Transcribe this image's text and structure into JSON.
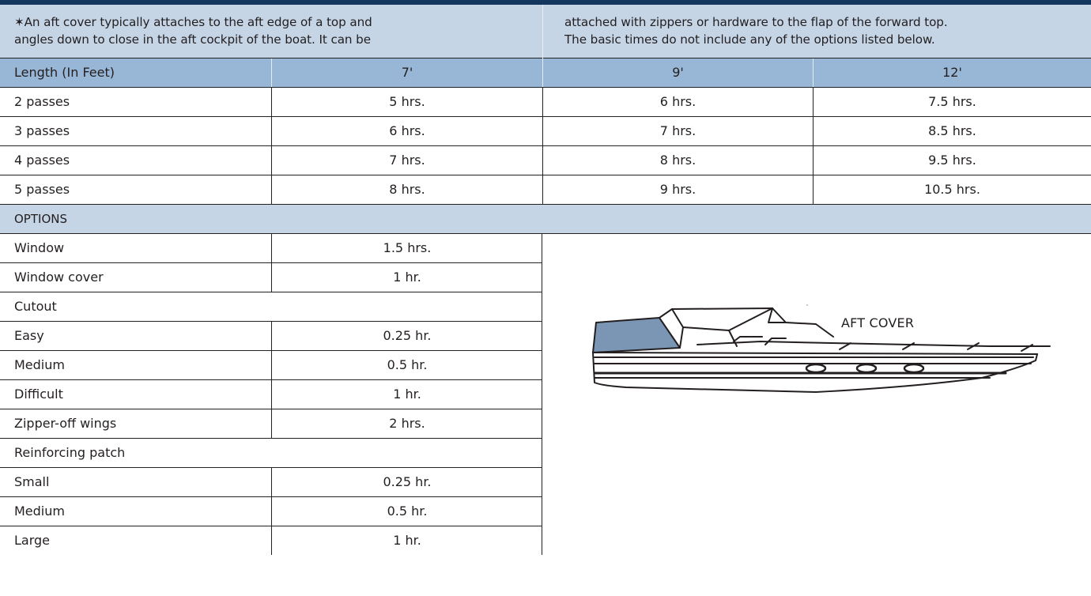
{
  "intro": {
    "left": [
      "✶An aft cover typically attaches to the aft edge of a top and",
      "angles down to close in the aft cockpit of the boat. It can be"
    ],
    "right": [
      "attached with zippers or hardware to the flap of the forward top.",
      "The basic times do not include any of the options listed below."
    ]
  },
  "table": {
    "header": [
      "Length (In Feet)",
      "7'",
      "9'",
      "12'"
    ],
    "rows": [
      [
        "2 passes",
        "5 hrs.",
        "6 hrs.",
        "7.5 hrs."
      ],
      [
        "3 passes",
        "6 hrs.",
        "7 hrs.",
        "8.5 hrs."
      ],
      [
        "4 passes",
        "7 hrs.",
        "8 hrs.",
        "9.5 hrs."
      ],
      [
        "5 passes",
        "8 hrs.",
        "9 hrs.",
        "10.5 hrs."
      ]
    ]
  },
  "options": {
    "title": "OPTIONS",
    "rows": [
      [
        "Window",
        "1.5 hrs."
      ],
      [
        "Window cover",
        "1 hr."
      ],
      [
        "Cutout",
        ""
      ],
      [
        "Easy",
        "0.25 hr."
      ],
      [
        "Medium",
        "0.5 hr."
      ],
      [
        "Difficult",
        "1 hr."
      ],
      [
        "Zipper-off wings",
        "2 hrs."
      ],
      [
        "Reinforcing patch",
        ""
      ],
      [
        "Small",
        "0.25 hr."
      ],
      [
        "Medium",
        "0.5 hr."
      ],
      [
        "Large",
        "1 hr."
      ]
    ]
  },
  "illustration": {
    "label": "AFT COVER",
    "icon": "boat-aft-cover-illustration",
    "highlight_color": "#7b96b5"
  },
  "colors": {
    "top_bar": "#14365f",
    "header_fill": "#98b6d6",
    "intro_fill": "#c5d5e6"
  }
}
